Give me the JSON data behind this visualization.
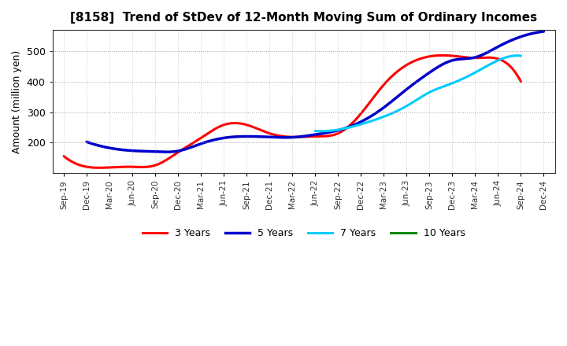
{
  "title": "[8158]  Trend of StDev of 12-Month Moving Sum of Ordinary Incomes",
  "ylabel": "Amount (million yen)",
  "background_color": "#ffffff",
  "plot_background": "#ffffff",
  "grid_color": "#999999",
  "ylim": [
    100,
    570
  ],
  "yticks": [
    200,
    300,
    400,
    500
  ],
  "x_labels": [
    "Sep-19",
    "Dec-19",
    "Mar-20",
    "Jun-20",
    "Sep-20",
    "Dec-20",
    "Mar-21",
    "Jun-21",
    "Sep-21",
    "Dec-21",
    "Mar-22",
    "Jun-22",
    "Sep-22",
    "Dec-22",
    "Mar-23",
    "Jun-23",
    "Sep-23",
    "Dec-23",
    "Mar-24",
    "Jun-24",
    "Sep-24",
    "Dec-24"
  ],
  "series": {
    "3 Years": {
      "color": "#ff0000",
      "linewidth": 2.2,
      "values": [
        155,
        120,
        118,
        120,
        125,
        168,
        215,
        258,
        258,
        230,
        218,
        220,
        230,
        295,
        390,
        455,
        483,
        485,
        478,
        475,
        400,
        null
      ]
    },
    "5 Years": {
      "color": "#0000cc",
      "linewidth": 2.5,
      "values": [
        null,
        202,
        182,
        173,
        170,
        172,
        196,
        215,
        220,
        218,
        217,
        226,
        240,
        268,
        315,
        375,
        430,
        470,
        480,
        515,
        548,
        565
      ]
    },
    "7 Years": {
      "color": "#00ccff",
      "linewidth": 2.2,
      "values": [
        null,
        null,
        null,
        null,
        null,
        null,
        null,
        null,
        null,
        null,
        null,
        238,
        242,
        260,
        285,
        320,
        365,
        395,
        430,
        470,
        485,
        null
      ]
    },
    "10 Years": {
      "color": "#008800",
      "linewidth": 2.2,
      "values": [
        null,
        null,
        null,
        null,
        null,
        null,
        null,
        null,
        null,
        null,
        null,
        null,
        null,
        null,
        null,
        null,
        null,
        null,
        null,
        null,
        null,
        null
      ]
    }
  }
}
